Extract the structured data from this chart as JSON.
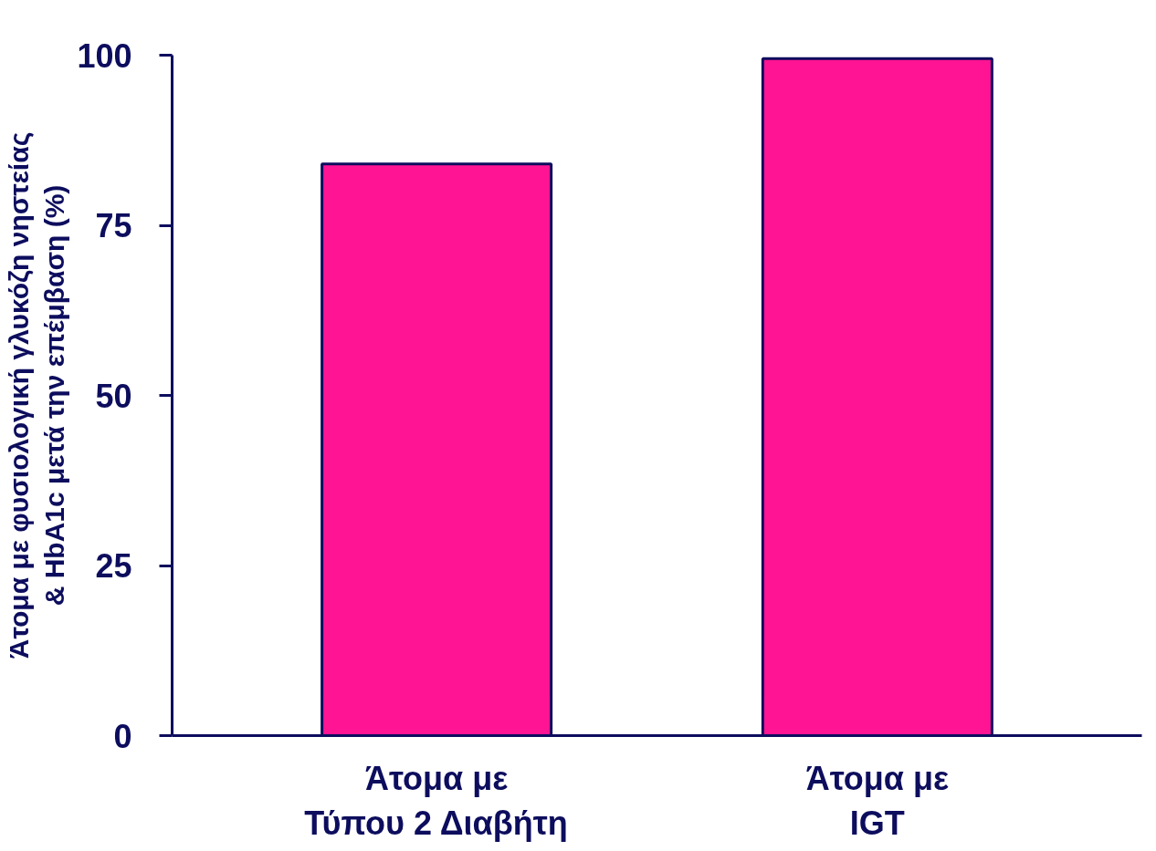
{
  "chart_data": {
    "type": "bar",
    "ylabel": "Άτομα με φυσιολογική γλυκόζη νηστείας\n& HbA1c μετά την επέμβαση (%)",
    "categories": [
      "Άτομα με\nΤύπου 2 Διαβήτη",
      "Άτομα με\nIGT"
    ],
    "values": [
      84,
      99.5
    ],
    "color": "#ff1493",
    "ylim": [
      0,
      100
    ],
    "yticks": [
      0,
      25,
      50,
      75,
      100
    ],
    "grid": false
  }
}
